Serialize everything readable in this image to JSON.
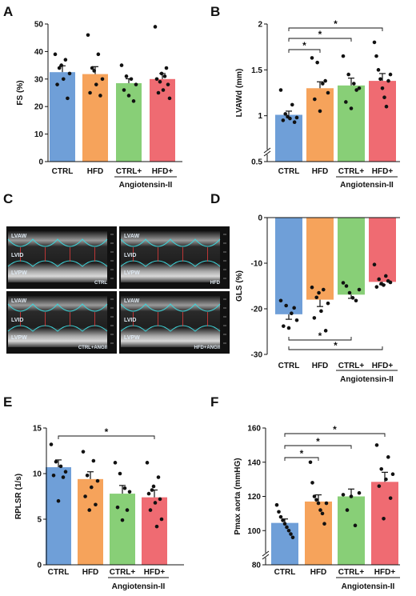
{
  "panel_labels": {
    "A": "A",
    "B": "B",
    "C": "C",
    "D": "D",
    "E": "E",
    "F": "F"
  },
  "colors": {
    "CTRL": "#6f9fd8",
    "HFD": "#f6a35b",
    "CTRL+": "#88cf77",
    "HFD+": "#ef6b72"
  },
  "ultrasound": {
    "images": [
      {
        "labels": [
          "LVAW",
          "LVID",
          "LVPW"
        ],
        "group": "CTRL"
      },
      {
        "labels": [
          "LVAW",
          "LVID",
          "LVPW"
        ],
        "group": "HFD"
      },
      {
        "labels": [
          "LVAW",
          "LVID",
          "LVPW"
        ],
        "group": "CTRL+ANGII"
      },
      {
        "labels": [
          "LVAW",
          "LVID",
          "LVPW"
        ],
        "group": "HFD+ANGII"
      }
    ]
  },
  "chart_data": [
    {
      "panel": "A",
      "type": "bar",
      "categories": [
        "CTRL",
        "HFD",
        "CTRL+",
        "HFD+"
      ],
      "group_label": "Angiotensin-II",
      "ylabel": "FS (%)",
      "ylim": [
        0,
        50
      ],
      "yticks": [
        0,
        10,
        20,
        30,
        40,
        50
      ],
      "values": [
        32.5,
        31.8,
        28.5,
        30.0
      ],
      "errors": [
        2.3,
        2.7,
        1.6,
        2.0
      ],
      "points": [
        [
          39,
          37,
          34,
          32,
          30,
          28,
          23,
          35
        ],
        [
          46,
          39,
          34,
          30,
          28,
          25,
          24,
          33
        ],
        [
          35,
          31,
          30,
          28,
          26,
          24,
          22
        ],
        [
          49,
          34,
          32,
          30,
          28,
          26,
          25,
          23,
          31,
          29
        ]
      ],
      "significance": []
    },
    {
      "panel": "B",
      "type": "bar",
      "categories": [
        "CTRL",
        "HFD",
        "CTRL+",
        "HFD+"
      ],
      "group_label": "Angiotensin-II",
      "ylabel": "LVAWd (mm)",
      "ylim": [
        0.5,
        2.0
      ],
      "yticks": [
        0.5,
        1.0,
        1.5,
        2.0
      ],
      "axis_break": true,
      "values": [
        1.01,
        1.3,
        1.33,
        1.38
      ],
      "errors": [
        0.04,
        0.07,
        0.08,
        0.08
      ],
      "points": [
        [
          1.28,
          1.12,
          1.02,
          0.98,
          0.97,
          0.95,
          0.93,
          0.99
        ],
        [
          1.63,
          1.58,
          1.35,
          1.25,
          1.18,
          1.05,
          1.38
        ],
        [
          1.65,
          1.45,
          1.35,
          1.3,
          1.15,
          1.08,
          1.28
        ],
        [
          1.8,
          1.65,
          1.5,
          1.4,
          1.3,
          1.2,
          1.1,
          1.38,
          1.45
        ]
      ],
      "significance": [
        {
          "from": "CTRL",
          "to": "HFD",
          "label": "*"
        },
        {
          "from": "CTRL",
          "to": "CTRL+",
          "label": "*"
        },
        {
          "from": "CTRL",
          "to": "HFD+",
          "label": "*"
        }
      ]
    },
    {
      "panel": "D",
      "type": "bar",
      "categories": [
        "CTRL",
        "HFD",
        "CTRL+",
        "HFD+"
      ],
      "group_label": "Angiotensin-II",
      "ylabel": "GLS (%)",
      "ylim": [
        -30,
        0
      ],
      "yticks": [
        0,
        -10,
        -20,
        -30
      ],
      "values": [
        -21.2,
        -18.0,
        -16.9,
        -14.1
      ],
      "errors": [
        1.1,
        1.5,
        0.8,
        0.6
      ],
      "points": [
        [
          -18.2,
          -19.3,
          -21.0,
          -22.5,
          -23.8,
          -24.2,
          -19.8
        ],
        [
          -15.3,
          -15.8,
          -17.5,
          -18.8,
          -20.5,
          -22.0,
          -24.8,
          -16.5
        ],
        [
          -14.3,
          -15.0,
          -16.5,
          -17.6,
          -18.2,
          -15.8
        ],
        [
          -10.3,
          -12.8,
          -13.5,
          -14.2,
          -14.8,
          -15.2,
          -13.9,
          -14.5
        ]
      ],
      "significance": [
        {
          "from": "CTRL",
          "to": "CTRL+",
          "label": "*"
        },
        {
          "from": "CTRL",
          "to": "HFD+",
          "label": "*"
        }
      ]
    },
    {
      "panel": "E",
      "type": "bar",
      "categories": [
        "CTRL",
        "HFD",
        "CTRL+",
        "HFD+"
      ],
      "group_label": "Angiotensin-II",
      "ylabel": "RPLSR (1/s)",
      "ylim": [
        0,
        15
      ],
      "yticks": [
        0,
        5,
        10,
        15
      ],
      "values": [
        10.7,
        9.4,
        7.8,
        7.4
      ],
      "errors": [
        0.8,
        0.8,
        0.9,
        0.8
      ],
      "points": [
        [
          13.2,
          11.3,
          10.8,
          10.2,
          9.8,
          7.0,
          9.6
        ],
        [
          12.4,
          11.4,
          9.8,
          9.2,
          8.5,
          7.5,
          6.6,
          6.0
        ],
        [
          11.2,
          10.0,
          8.4,
          8.0,
          6.3,
          4.9,
          6.0
        ],
        [
          11.2,
          9.6,
          8.6,
          7.8,
          7.2,
          6.8,
          6.0,
          5.0,
          4.2,
          8.2
        ]
      ],
      "significance": [
        {
          "from": "CTRL",
          "to": "HFD+",
          "label": "*"
        }
      ]
    },
    {
      "panel": "F",
      "type": "bar",
      "categories": [
        "CTRL",
        "HFD",
        "CTRL+",
        "HFD+"
      ],
      "group_label": "Angiotensin-II",
      "ylabel": "Pmax aorta (mmHG)",
      "ylim": [
        80,
        160
      ],
      "yticks": [
        80,
        100,
        120,
        140,
        160
      ],
      "axis_break": true,
      "values": [
        104.5,
        117.0,
        120.0,
        128.5
      ],
      "errors": [
        2.3,
        3.9,
        4.3,
        5.6
      ],
      "points": [
        [
          115,
          111,
          108,
          106,
          104,
          102,
          100,
          98,
          96
        ],
        [
          140,
          128,
          120,
          118,
          116,
          112,
          110,
          104,
          116
        ],
        [
          121,
          120,
          122,
          112,
          103
        ],
        [
          150,
          143,
          136,
          133,
          130,
          126,
          119,
          107
        ]
      ],
      "significance": [
        {
          "from": "CTRL",
          "to": "HFD",
          "label": "*"
        },
        {
          "from": "CTRL",
          "to": "CTRL+",
          "label": "*"
        },
        {
          "from": "CTRL",
          "to": "HFD+",
          "label": "*"
        }
      ]
    }
  ]
}
